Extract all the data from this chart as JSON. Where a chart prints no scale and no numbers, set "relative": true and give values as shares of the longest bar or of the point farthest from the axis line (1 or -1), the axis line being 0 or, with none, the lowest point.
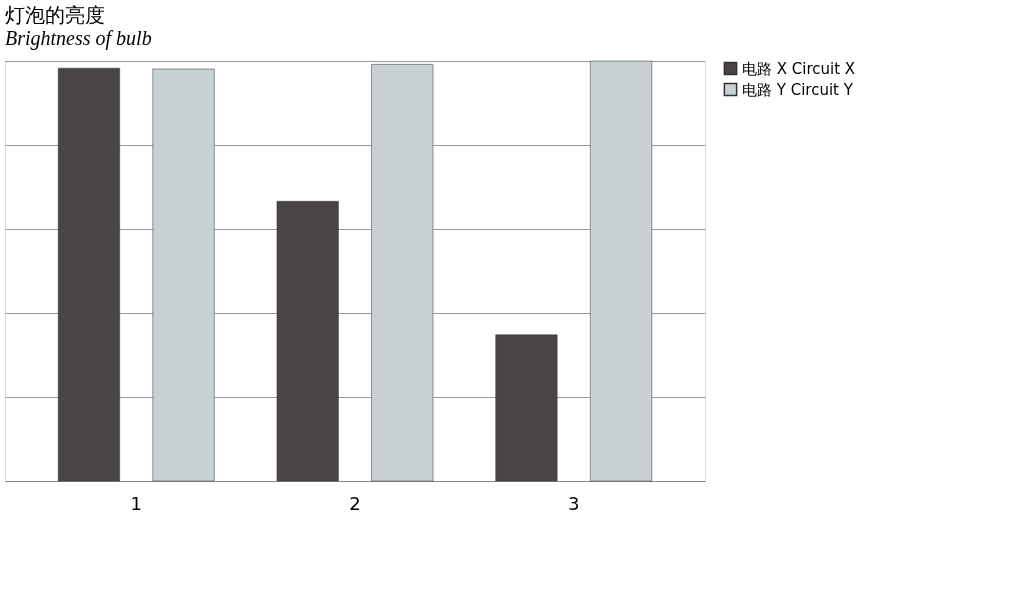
{
  "chart_data": {
    "type": "bar",
    "title": "灯泡的亮度",
    "subtitle": "Brightness of bulb",
    "categories": [
      "1",
      "2",
      "3"
    ],
    "relative": true,
    "grid": "y",
    "legend": "right",
    "series": [
      {
        "name": "电路 X   Circuit X",
        "color": "#4a4545",
        "values": [
          0.983,
          0.666,
          0.348
        ]
      },
      {
        "name": "电路 Y   Circuit Y",
        "color": "#c9d1d5",
        "values": [
          0.981,
          0.992,
          1
        ]
      }
    ]
  }
}
